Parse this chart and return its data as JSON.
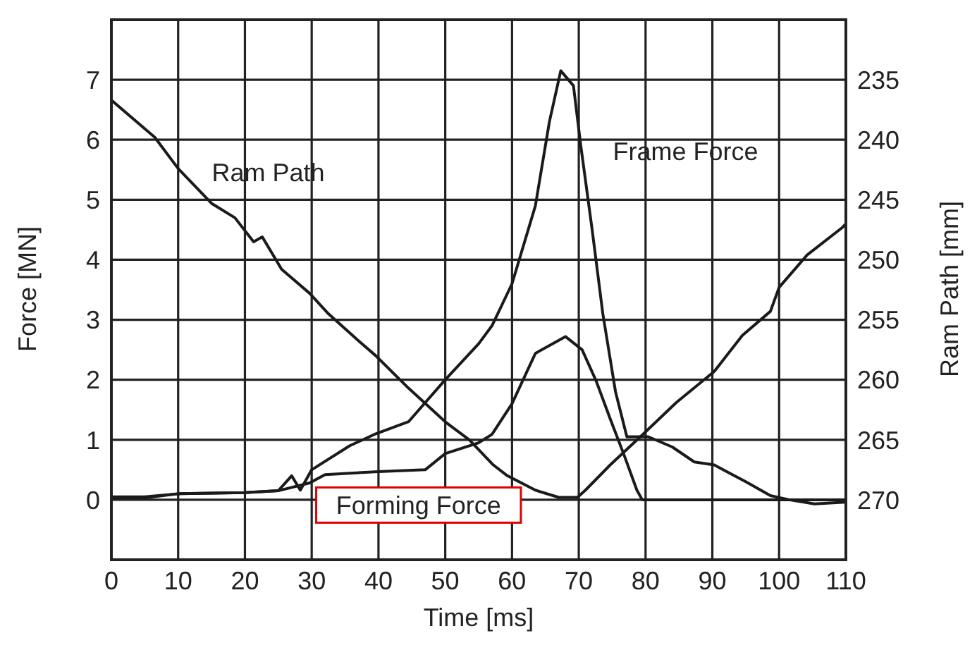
{
  "chart_data": {
    "type": "line",
    "xlabel": "Time [ms]",
    "ylabel": "Force [MN]",
    "y2label": "Ram Path [mm]",
    "xlim": [
      0,
      110
    ],
    "xticks": [
      0,
      10,
      20,
      30,
      40,
      50,
      60,
      70,
      80,
      90,
      100,
      110
    ],
    "ylim": [
      -1,
      8
    ],
    "yticks": [
      0,
      1,
      2,
      3,
      4,
      5,
      6,
      7
    ],
    "y2lim": [
      275,
      230
    ],
    "y2ticks": [
      235,
      240,
      245,
      250,
      255,
      260,
      265,
      270
    ],
    "grid": true,
    "marker": "none",
    "line_style": "solid",
    "series": [
      {
        "name": "Frame Force",
        "color": "#1a1a1a",
        "x": [
          0,
          5,
          10,
          20,
          25,
          27,
          28.3,
          30,
          35.7,
          39.6,
          44.5,
          50,
          55,
          57,
          60,
          63.5,
          65.6,
          67.3,
          69.2,
          70.3,
          72,
          73.6,
          75.5,
          77.2,
          80.4,
          84,
          87.3,
          90.3,
          93,
          95,
          98.7,
          101.5,
          105.3,
          110
        ],
        "values": [
          0.05,
          0.05,
          0.1,
          0.12,
          0.15,
          0.4,
          0.16,
          0.5,
          0.9,
          1.1,
          1.3,
          2.0,
          2.6,
          2.9,
          3.6,
          4.9,
          6.3,
          7.15,
          6.9,
          5.9,
          4.5,
          3.1,
          1.8,
          1.05,
          1.05,
          0.88,
          0.63,
          0.58,
          0.42,
          0.3,
          0.07,
          0.0,
          -0.07,
          -0.04
        ]
      },
      {
        "name": "Forming Force",
        "color": "#1a1a1a",
        "x": [
          0,
          5,
          10,
          20,
          25,
          29.7,
          32,
          40,
          47,
          50,
          55,
          57,
          60,
          63.5,
          68,
          70.5,
          72.6,
          74.7,
          76.8,
          78.7,
          79.5,
          90,
          100,
          110
        ],
        "values": [
          0.03,
          0.03,
          0.1,
          0.12,
          0.15,
          0.28,
          0.42,
          0.47,
          0.5,
          0.77,
          0.95,
          1.09,
          1.6,
          2.44,
          2.72,
          2.5,
          1.98,
          1.35,
          0.74,
          0.16,
          0.0,
          0.0,
          0.0,
          0.0
        ]
      },
      {
        "name": "Ram Path",
        "color": "#1a1a1a",
        "axis": "y2",
        "x": [
          0,
          6.5,
          10,
          15,
          18.5,
          21.3,
          22.6,
          25.5,
          29.7,
          32.5,
          36.7,
          39.6,
          44.5,
          50.2,
          53.6,
          57.2,
          59.3,
          63.5,
          67,
          69.8,
          71,
          74.7,
          79.7,
          84.6,
          90.3,
          94.5,
          98.7,
          100,
          104.2,
          109.5,
          110
        ],
        "values": [
          236.7,
          239.8,
          242.4,
          245.3,
          246.5,
          248.5,
          248.1,
          250.8,
          252.8,
          254.5,
          256.6,
          258.0,
          260.7,
          263.6,
          265.0,
          267.1,
          268.0,
          269.2,
          269.8,
          269.8,
          269.2,
          267.1,
          264.5,
          261.9,
          259.3,
          256.3,
          254.3,
          252.3,
          249.6,
          247.3,
          247.0
        ]
      }
    ]
  }
}
